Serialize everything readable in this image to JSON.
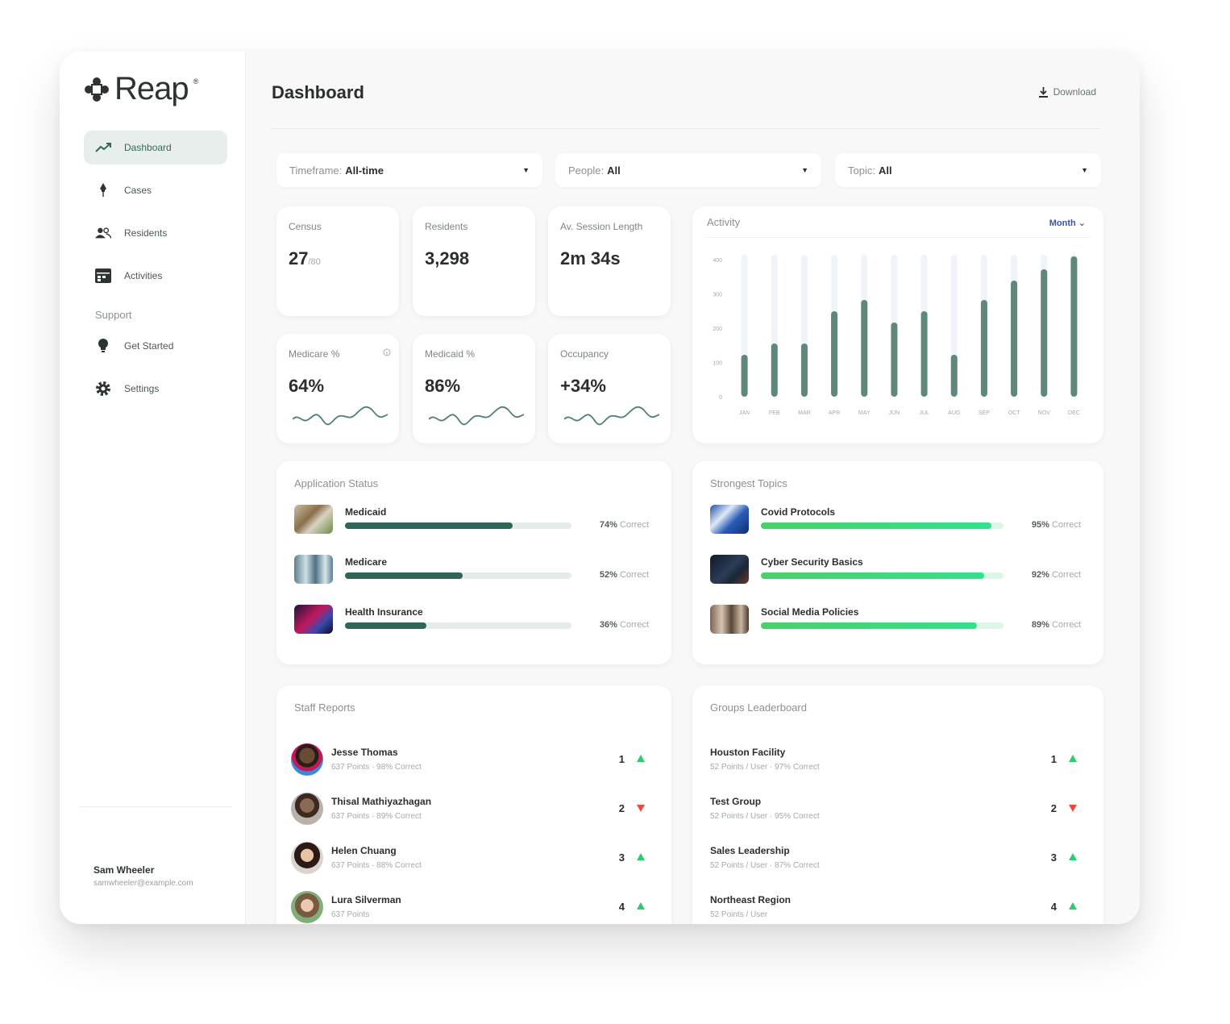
{
  "brand": {
    "name": "Reap",
    "reg": "®"
  },
  "nav": {
    "items": [
      {
        "label": "Dashboard",
        "icon": "trending-up-icon",
        "active": true
      },
      {
        "label": "Cases",
        "icon": "pin-icon",
        "active": false
      },
      {
        "label": "Residents",
        "icon": "users-icon",
        "active": false
      },
      {
        "label": "Activities",
        "icon": "calendar-icon",
        "active": false
      }
    ],
    "support_heading": "Support",
    "support_items": [
      {
        "label": "Get Started",
        "icon": "lightbulb-icon"
      },
      {
        "label": "Settings",
        "icon": "gear-icon"
      }
    ]
  },
  "user": {
    "name": "Sam Wheeler",
    "email": "samwheeler@example.com"
  },
  "header": {
    "title": "Dashboard",
    "download_label": "Download"
  },
  "filters": [
    {
      "label": "Timeframe:",
      "value": "All-time"
    },
    {
      "label": "People:",
      "value": "All"
    },
    {
      "label": "Topic:",
      "value": "All"
    }
  ],
  "stats": [
    {
      "label": "Census",
      "value": "27",
      "sub": "/80"
    },
    {
      "label": "Residents",
      "value": "3,298",
      "sub": ""
    },
    {
      "label": "Av. Session Length",
      "value": "2m 34s",
      "sub": ""
    },
    {
      "label": "Medicare %",
      "value": "64%",
      "sub": ""
    },
    {
      "label": "Medicaid %",
      "value": "86%",
      "sub": ""
    },
    {
      "label": "Occupancy",
      "value": "+34%",
      "sub": ""
    }
  ],
  "activity": {
    "title": "Activity",
    "period": "Month",
    "chart_data": {
      "type": "bar",
      "title": "Activity",
      "categories": [
        "JAN",
        "FEB",
        "MAR",
        "APR",
        "MAY",
        "JUN",
        "JUL",
        "AUG",
        "SEP",
        "OCT",
        "NOV",
        "DEC"
      ],
      "y_ticks": [
        "400",
        "300",
        "200",
        "100",
        "0"
      ],
      "ylim": [
        0,
        440
      ],
      "values": [
        130,
        165,
        165,
        265,
        300,
        230,
        265,
        130,
        300,
        360,
        395,
        435
      ],
      "bar_color": "#5f877b",
      "track_color": "#f0f3fa"
    }
  },
  "app_status": {
    "title": "Application Status",
    "items": [
      {
        "label": "Medicaid",
        "percent": 74,
        "percent_text": "74%",
        "suffix": "Correct"
      },
      {
        "label": "Medicare",
        "percent": 52,
        "percent_text": "52%",
        "suffix": "Correct"
      },
      {
        "label": "Health Insurance",
        "percent": 36,
        "percent_text": "36%",
        "suffix": "Correct"
      }
    ]
  },
  "topics": {
    "title": "Strongest Topics",
    "items": [
      {
        "label": "Covid Protocols",
        "percent": 95,
        "percent_text": "95%",
        "suffix": "Correct"
      },
      {
        "label": "Cyber Security Basics",
        "percent": 92,
        "percent_text": "92%",
        "suffix": "Correct"
      },
      {
        "label": "Social Media Policies",
        "percent": 89,
        "percent_text": "89%",
        "suffix": "Correct"
      }
    ]
  },
  "staff": {
    "title": "Staff Reports",
    "items": [
      {
        "name": "Jesse Thomas",
        "detail": "637 Points · 98% Correct",
        "rank": "1",
        "trend": "up"
      },
      {
        "name": "Thisal Mathiyazhagan",
        "detail": "637 Points · 89% Correct",
        "rank": "2",
        "trend": "down"
      },
      {
        "name": "Helen Chuang",
        "detail": "637 Points · 88% Correct",
        "rank": "3",
        "trend": "up"
      },
      {
        "name": "Lura Silverman",
        "detail": "637 Points",
        "rank": "4",
        "trend": "up"
      }
    ]
  },
  "groups": {
    "title": "Groups Leaderboard",
    "items": [
      {
        "name": "Houston Facility",
        "detail": "52 Points / User · 97% Correct",
        "rank": "1",
        "trend": "up"
      },
      {
        "name": "Test Group",
        "detail": "52 Points / User · 95% Correct",
        "rank": "2",
        "trend": "down"
      },
      {
        "name": "Sales Leadership",
        "detail": "52 Points / User · 87% Correct",
        "rank": "3",
        "trend": "up"
      },
      {
        "name": "Northeast Region",
        "detail": "52 Points / User",
        "rank": "4",
        "trend": "up"
      }
    ]
  },
  "colors": {
    "accent": "#2f6a58",
    "bar_dark": "#2f6658",
    "bar_green": "#36d16b",
    "trend_up": "#2ecc71",
    "trend_down": "#e74c3c"
  }
}
